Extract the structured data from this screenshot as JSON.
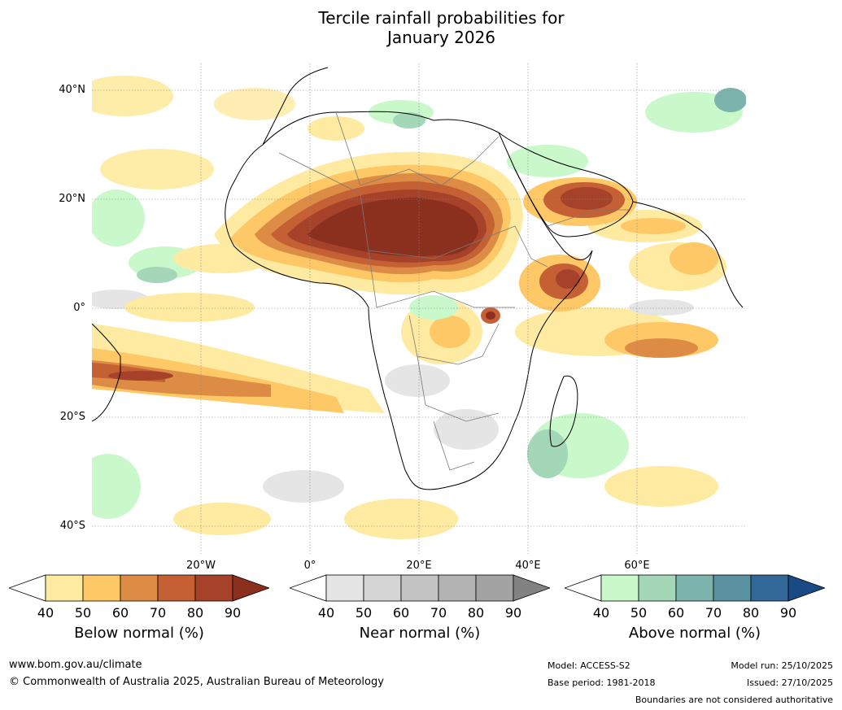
{
  "title": {
    "line1": "Tercile rainfall probabilities for",
    "line2": "January 2026"
  },
  "map": {
    "region": "Africa",
    "lat_labels": [
      "40°N",
      "20°N",
      "0°",
      "20°S",
      "40°S"
    ],
    "lon_labels": [
      "20°W",
      "0°",
      "20°E",
      "40°E",
      "60°E"
    ]
  },
  "colorbars": [
    {
      "id": "below",
      "title": "Below normal (%)",
      "ticks": [
        "40",
        "50",
        "60",
        "70",
        "80",
        "90"
      ],
      "colors": [
        "#ffffff",
        "#feeaa0",
        "#fec866",
        "#dd8c45",
        "#c55f34",
        "#a6422a",
        "#8b2f1f"
      ]
    },
    {
      "id": "near",
      "title": "Near normal (%)",
      "ticks": [
        "40",
        "50",
        "60",
        "70",
        "80",
        "90"
      ],
      "colors": [
        "#ffffff",
        "#e5e5e5",
        "#d5d5d5",
        "#c4c4c4",
        "#b3b3b3",
        "#a3a3a3",
        "#828282"
      ]
    },
    {
      "id": "above",
      "title": "Above normal (%)",
      "ticks": [
        "40",
        "50",
        "60",
        "70",
        "80",
        "90"
      ],
      "colors": [
        "#ffffff",
        "#c9f8cb",
        "#a3d7b8",
        "#7db3ad",
        "#5a92a1",
        "#326898",
        "#1a4a84"
      ]
    }
  ],
  "footer": {
    "website": "www.bom.gov.au/climate",
    "copyright": "© Commonwealth of Australia 2025, Australian Bureau of Meteorology",
    "model": "Model: ACCESS-S2",
    "base_period": "Base period: 1981-2018",
    "model_run": "Model run: 25/10/2025",
    "issued": "Issued: 27/10/2025",
    "disclaimer": "Boundaries are not considered authoritative"
  }
}
